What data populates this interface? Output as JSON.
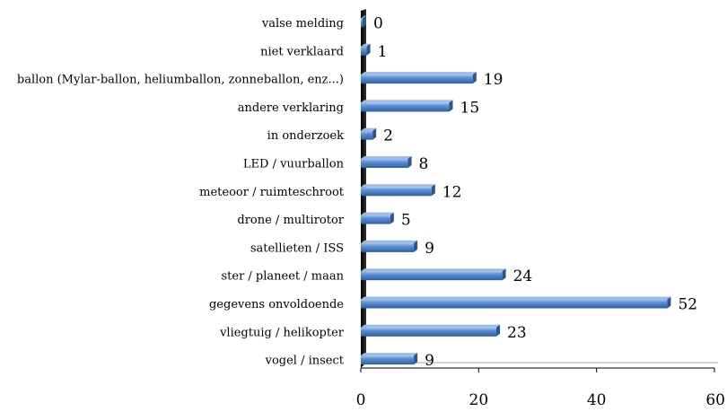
{
  "chart_data": {
    "type": "bar",
    "orientation": "horizontal",
    "categories": [
      "valse melding",
      "niet verklaard",
      "ballon (Mylar-ballon, heliumballon, zonneballon, enz...)",
      "andere verklaring",
      "in onderzoek",
      "LED / vuurballon",
      "meteoor / ruimteschroot",
      "drone / multirotor",
      "satellieten / ISS",
      "ster / planeet / maan",
      "gegevens onvoldoende",
      "vliegtuig / helikopter",
      "vogel / insect"
    ],
    "values": [
      0,
      1,
      19,
      15,
      2,
      8,
      12,
      5,
      9,
      24,
      52,
      23,
      9
    ],
    "xlim": [
      0,
      60
    ],
    "xticks": [
      0,
      20,
      40,
      60
    ],
    "title": "",
    "xlabel": "",
    "ylabel": "",
    "grid": false,
    "legend": "none",
    "bar_color": "#4f81bd"
  }
}
